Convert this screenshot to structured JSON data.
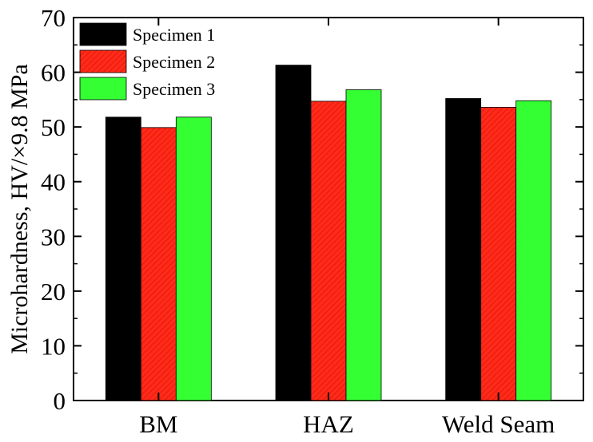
{
  "chart_data": {
    "type": "bar",
    "categories": [
      "BM",
      "HAZ",
      "Weld Seam"
    ],
    "series": [
      {
        "name": "Specimen 1",
        "values": [
          51.8,
          61.3,
          55.2
        ],
        "color": "#000000",
        "pattern": "solid"
      },
      {
        "name": "Specimen 2",
        "values": [
          49.9,
          54.7,
          53.6
        ],
        "color": "#ff2a1a",
        "pattern": "hatched"
      },
      {
        "name": "Specimen 3",
        "values": [
          51.8,
          56.8,
          54.8
        ],
        "color": "#33ff33",
        "pattern": "solid"
      }
    ],
    "ylabel": "Microhardness, HV/×9.8 MPa",
    "xlabel": "",
    "ylim": [
      0,
      70
    ],
    "yticks": [
      "0",
      "10",
      "20",
      "30",
      "40",
      "50",
      "60",
      "70"
    ],
    "grid": false,
    "legend_position": "top-left"
  }
}
